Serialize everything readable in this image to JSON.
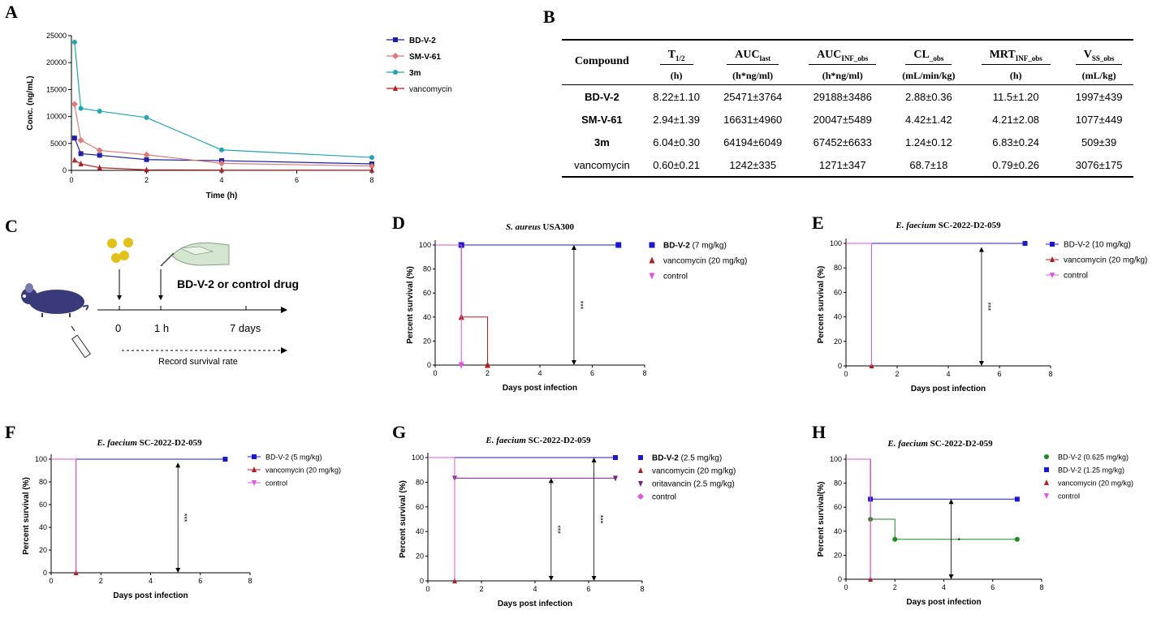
{
  "panels": {
    "A": "A",
    "B": "B",
    "C": "C",
    "D": "D",
    "E": "E",
    "F": "F",
    "G": "G",
    "H": "H"
  },
  "schematic": {
    "drug_label": "BD-V-2 or control drug",
    "t0": "0",
    "t1": "1 h",
    "t7": "7 days",
    "record": "Record survival rate"
  },
  "table": {
    "headers": [
      {
        "name": "Compound",
        "unit": ""
      },
      {
        "name": "T",
        "sub": "1/2",
        "unit": "(h)"
      },
      {
        "name": "AUC",
        "sub": "last",
        "unit": "(h*ng/ml)"
      },
      {
        "name": "AUC",
        "sub": "INF_obs",
        "unit": "(h*ng/ml)"
      },
      {
        "name": "CL",
        "sub": "_obs",
        "unit": "(mL/min/kg)"
      },
      {
        "name": "MRT",
        "sub": "INF_obs",
        "unit": "(h)"
      },
      {
        "name": "V",
        "sub": "SS_obs",
        "unit": "(mL/kg)"
      }
    ],
    "rows": [
      [
        "BD-V-2",
        "8.22±1.10",
        "25471±3764",
        "29188±3486",
        "2.88±0.36",
        "11.5±1.20",
        "1997±439"
      ],
      [
        "SM-V-61",
        "2.94±1.39",
        "16631±4960",
        "20047±5489",
        "4.42±1.42",
        "4.21±2.08",
        "1077±449"
      ],
      [
        "3m",
        "6.04±0.30",
        "64194±6049",
        "67452±6633",
        "1.24±0.12",
        "6.83±0.24",
        "509±39"
      ],
      [
        "vancomycin",
        "0.60±0.21",
        "1242±335",
        "1271±347",
        "68.7±18",
        "0.79±0.26",
        "3076±175"
      ]
    ]
  },
  "chart_data": [
    {
      "id": "A",
      "type": "line",
      "xlabel": "Time (h)",
      "ylabel": "Conc. (ng/mL)",
      "xlim": [
        0,
        8
      ],
      "ylim": [
        0,
        25000
      ],
      "xticks": [
        0,
        2,
        4,
        6,
        8
      ],
      "yticks": [
        0,
        5000,
        10000,
        15000,
        20000,
        25000
      ],
      "legend_position": "right",
      "series": [
        {
          "name": "BD-V-2",
          "color": "#1f1fa8",
          "marker": "square",
          "x": [
            0.083,
            0.25,
            0.75,
            2,
            4,
            8
          ],
          "y": [
            6000,
            3100,
            2800,
            2000,
            1800,
            1200
          ]
        },
        {
          "name": "SM-V-61",
          "color": "#e07a7a",
          "marker": "diamond",
          "x": [
            0.083,
            0.25,
            0.75,
            2,
            4,
            8
          ],
          "y": [
            12300,
            5600,
            3700,
            2900,
            1300,
            800
          ]
        },
        {
          "name": "3m",
          "color": "#1fa5b5",
          "marker": "circle",
          "x": [
            0.083,
            0.25,
            0.75,
            2,
            4,
            8
          ],
          "y": [
            23800,
            11500,
            11000,
            9800,
            3800,
            2400
          ]
        },
        {
          "name": "vancomycin",
          "color": "#b01e1e",
          "marker": "triangle",
          "x": [
            0.083,
            0.25,
            0.75,
            2,
            4,
            8
          ],
          "y": [
            1900,
            1200,
            500,
            100,
            50,
            30
          ]
        }
      ]
    },
    {
      "id": "D",
      "type": "line",
      "title_italic": "S. aureus",
      "title_rest": " USA300",
      "xlabel": "Days post infection",
      "ylabel": "Percent survival (%)",
      "xlim": [
        0,
        8
      ],
      "ylim": [
        0,
        100
      ],
      "xticks": [
        0,
        2,
        4,
        6,
        8
      ],
      "yticks": [
        0,
        20,
        40,
        60,
        80,
        100
      ],
      "significance": "***",
      "series": [
        {
          "name": "BD-V-2",
          "dose": " (7 mg/kg)",
          "color": "#1a1acc",
          "marker": "square",
          "steps": [
            [
              0,
              100
            ],
            [
              7,
              100
            ]
          ]
        },
        {
          "name": "vancomycin",
          "dose": " (20 mg/kg)",
          "color": "#b01e1e",
          "marker": "triangle",
          "steps": [
            [
              0,
              100
            ],
            [
              1,
              100
            ],
            [
              1,
              40
            ],
            [
              2,
              40
            ],
            [
              2,
              0
            ]
          ]
        },
        {
          "name": "control",
          "dose": "",
          "color": "#e055e0",
          "marker": "triangle-down",
          "steps": [
            [
              0,
              100
            ],
            [
              1,
              100
            ],
            [
              1,
              0
            ]
          ]
        }
      ]
    },
    {
      "id": "E",
      "type": "line",
      "title_italic": "E. faecium",
      "title_rest": " SC-2022-D2-059",
      "xlabel": "Days post infection",
      "ylabel": "Percent survival (%)",
      "xlim": [
        0,
        8
      ],
      "ylim": [
        0,
        100
      ],
      "xticks": [
        0,
        2,
        4,
        6,
        8
      ],
      "yticks": [
        0,
        20,
        40,
        60,
        80,
        100
      ],
      "significance": "***",
      "series": [
        {
          "name": "BD-V-2",
          "dose": " (10 mg/kg)",
          "color": "#1a1acc",
          "marker": "square",
          "steps": [
            [
              0,
              100
            ],
            [
              7,
              100
            ]
          ]
        },
        {
          "name": "vancomycin",
          "dose": " (20 mg/kg)",
          "color": "#b01e1e",
          "marker": "triangle",
          "steps": [
            [
              0,
              100
            ],
            [
              1,
              100
            ],
            [
              1,
              0
            ]
          ]
        },
        {
          "name": "control",
          "dose": "",
          "color": "#e055e0",
          "marker": "triangle-down",
          "steps": [
            [
              0,
              100
            ],
            [
              1,
              100
            ],
            [
              1,
              0
            ]
          ]
        }
      ]
    },
    {
      "id": "F",
      "type": "line",
      "title_italic": "E. faecium",
      "title_rest": " SC-2022-D2-059",
      "xlabel": "Days post infection",
      "ylabel": "Percent survival (%)",
      "xlim": [
        0,
        8
      ],
      "ylim": [
        0,
        100
      ],
      "xticks": [
        0,
        2,
        4,
        6,
        8
      ],
      "yticks": [
        0,
        20,
        40,
        60,
        80,
        100
      ],
      "significance": "***",
      "series": [
        {
          "name": "BD-V-2",
          "dose": " (5 mg/kg)",
          "color": "#1a1acc",
          "marker": "square",
          "steps": [
            [
              0,
              100
            ],
            [
              7,
              100
            ]
          ]
        },
        {
          "name": "vancomycin",
          "dose": " (20 mg/kg)",
          "color": "#b01e1e",
          "marker": "triangle",
          "steps": [
            [
              0,
              100
            ],
            [
              1,
              100
            ],
            [
              1,
              0
            ]
          ]
        },
        {
          "name": "control",
          "dose": "",
          "color": "#e055e0",
          "marker": "triangle-down",
          "steps": [
            [
              0,
              100
            ],
            [
              1,
              100
            ],
            [
              1,
              0
            ]
          ]
        }
      ]
    },
    {
      "id": "G",
      "type": "line",
      "title_italic": "E. faecium",
      "title_rest": " SC-2022-D2-059",
      "xlabel": "Days post infection",
      "ylabel": "Percent survival (%)",
      "xlim": [
        0,
        8
      ],
      "ylim": [
        0,
        100
      ],
      "xticks": [
        0,
        2,
        4,
        6,
        8
      ],
      "yticks": [
        0,
        20,
        40,
        60,
        80,
        100
      ],
      "significance": [
        "***",
        "***"
      ],
      "series": [
        {
          "name": "BD-V-2",
          "dose": " (2.5 mg/kg)",
          "color": "#1a1acc",
          "marker": "square",
          "steps": [
            [
              0,
              100
            ],
            [
              7,
              100
            ]
          ]
        },
        {
          "name": "vancomycin",
          "dose": " (20 mg/kg)",
          "color": "#b01e1e",
          "marker": "triangle",
          "steps": [
            [
              0,
              100
            ],
            [
              1,
              100
            ],
            [
              1,
              0
            ]
          ]
        },
        {
          "name": "oritavancin",
          "dose": " (2.5 mg/kg)",
          "color": "#7a1e8a",
          "marker": "triangle-down",
          "steps": [
            [
              0,
              100
            ],
            [
              1,
              100
            ],
            [
              1,
              83.3
            ],
            [
              7,
              83.3
            ]
          ]
        },
        {
          "name": "control",
          "dose": "",
          "color": "#e055e0",
          "marker": "diamond",
          "steps": [
            [
              0,
              100
            ],
            [
              1,
              100
            ],
            [
              1,
              0
            ]
          ]
        }
      ]
    },
    {
      "id": "H",
      "type": "line",
      "title_italic": "E. faecium",
      "title_rest": " SC-2022-D2-059",
      "xlabel": "Days post infection",
      "ylabel": "Percent survival(%)",
      "xlim": [
        0,
        8
      ],
      "ylim": [
        0,
        100
      ],
      "xticks": [
        0,
        2,
        4,
        6,
        8
      ],
      "yticks": [
        0,
        20,
        40,
        60,
        80,
        100
      ],
      "significance": "*",
      "series": [
        {
          "name": "BD-V-2",
          "dose": " (0.625 mg/kg)",
          "color": "#1f8a1f",
          "marker": "circle",
          "steps": [
            [
              0,
              100
            ],
            [
              1,
              100
            ],
            [
              1,
              50
            ],
            [
              2,
              50
            ],
            [
              2,
              33.3
            ],
            [
              7,
              33.3
            ]
          ]
        },
        {
          "name": "BD-V-2",
          "dose": " (1.25 mg/kg)",
          "color": "#1a1acc",
          "marker": "square",
          "steps": [
            [
              0,
              100
            ],
            [
              1,
              100
            ],
            [
              1,
              66.7
            ],
            [
              7,
              66.7
            ]
          ]
        },
        {
          "name": "vancomycin",
          "dose": " (20 mg/kg)",
          "color": "#b01e1e",
          "marker": "triangle",
          "steps": [
            [
              0,
              100
            ],
            [
              1,
              100
            ],
            [
              1,
              0
            ]
          ]
        },
        {
          "name": "control",
          "dose": "",
          "color": "#e055e0",
          "marker": "triangle-down",
          "steps": [
            [
              0,
              100
            ],
            [
              1,
              100
            ],
            [
              1,
              0
            ]
          ]
        }
      ]
    }
  ]
}
